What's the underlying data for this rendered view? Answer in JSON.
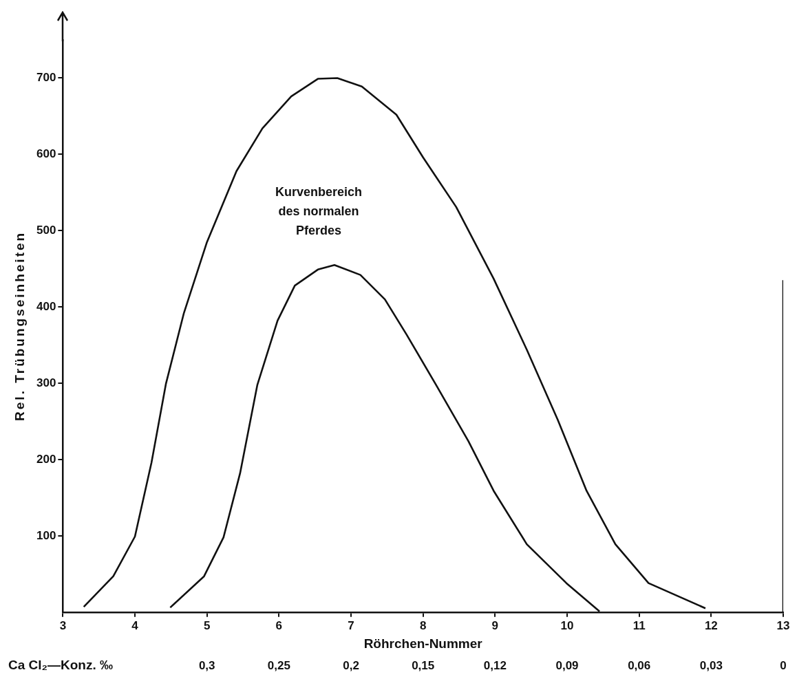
{
  "chart_data": {
    "type": "line",
    "xlabel": "Röhrchen-Nummer",
    "ylabel": "Rel. Trübungseinheiten",
    "xlim": [
      3,
      13
    ],
    "xticks": [
      3,
      4,
      5,
      6,
      7,
      8,
      9,
      10,
      11,
      12,
      13
    ],
    "ylim": [
      0,
      750
    ],
    "yticks": [
      100,
      200,
      300,
      400,
      500,
      600,
      700
    ],
    "grid": false,
    "legend": false,
    "marker": "none",
    "line_style": "solid",
    "annotations": [
      "Kurvenbereich\ndes normalen\nPferdes",
      "Ca Cl₂—Konz. ‰",
      "0,3",
      "0,25",
      "0,2",
      "0,15",
      "0,12",
      "0,09",
      "0,06",
      "0,03",
      "0"
    ],
    "series": [
      {
        "color": "#111111",
        "x": [
          3.29,
          3.7,
          4.0,
          4.23,
          4.43,
          4.68,
          5.0,
          5.41,
          5.77,
          6.17,
          6.54,
          6.81,
          7.15,
          7.63,
          8.0,
          8.46,
          8.98,
          9.44,
          9.87,
          10.27,
          10.67,
          11.13,
          11.92
        ],
        "values": [
          7,
          47,
          99,
          196,
          299,
          392,
          485,
          578,
          634,
          676,
          699,
          700,
          689,
          652,
          596,
          531,
          437,
          344,
          252,
          159,
          89,
          38,
          5
        ]
      },
      {
        "color": "#111111",
        "x": [
          4.49,
          4.96,
          5.23,
          5.46,
          5.7,
          5.98,
          6.22,
          6.54,
          6.77,
          7.13,
          7.47,
          7.77,
          8.18,
          8.63,
          8.98,
          9.44,
          9.99,
          10.45
        ],
        "values": [
          6,
          47,
          98,
          182,
          298,
          382,
          428,
          449,
          455,
          442,
          410,
          364,
          298,
          224,
          159,
          89,
          38,
          1
        ]
      },
      {
        "color": "#111111",
        "x": [
          13,
          13
        ],
        "values": [
          0,
          435
        ]
      }
    ]
  }
}
